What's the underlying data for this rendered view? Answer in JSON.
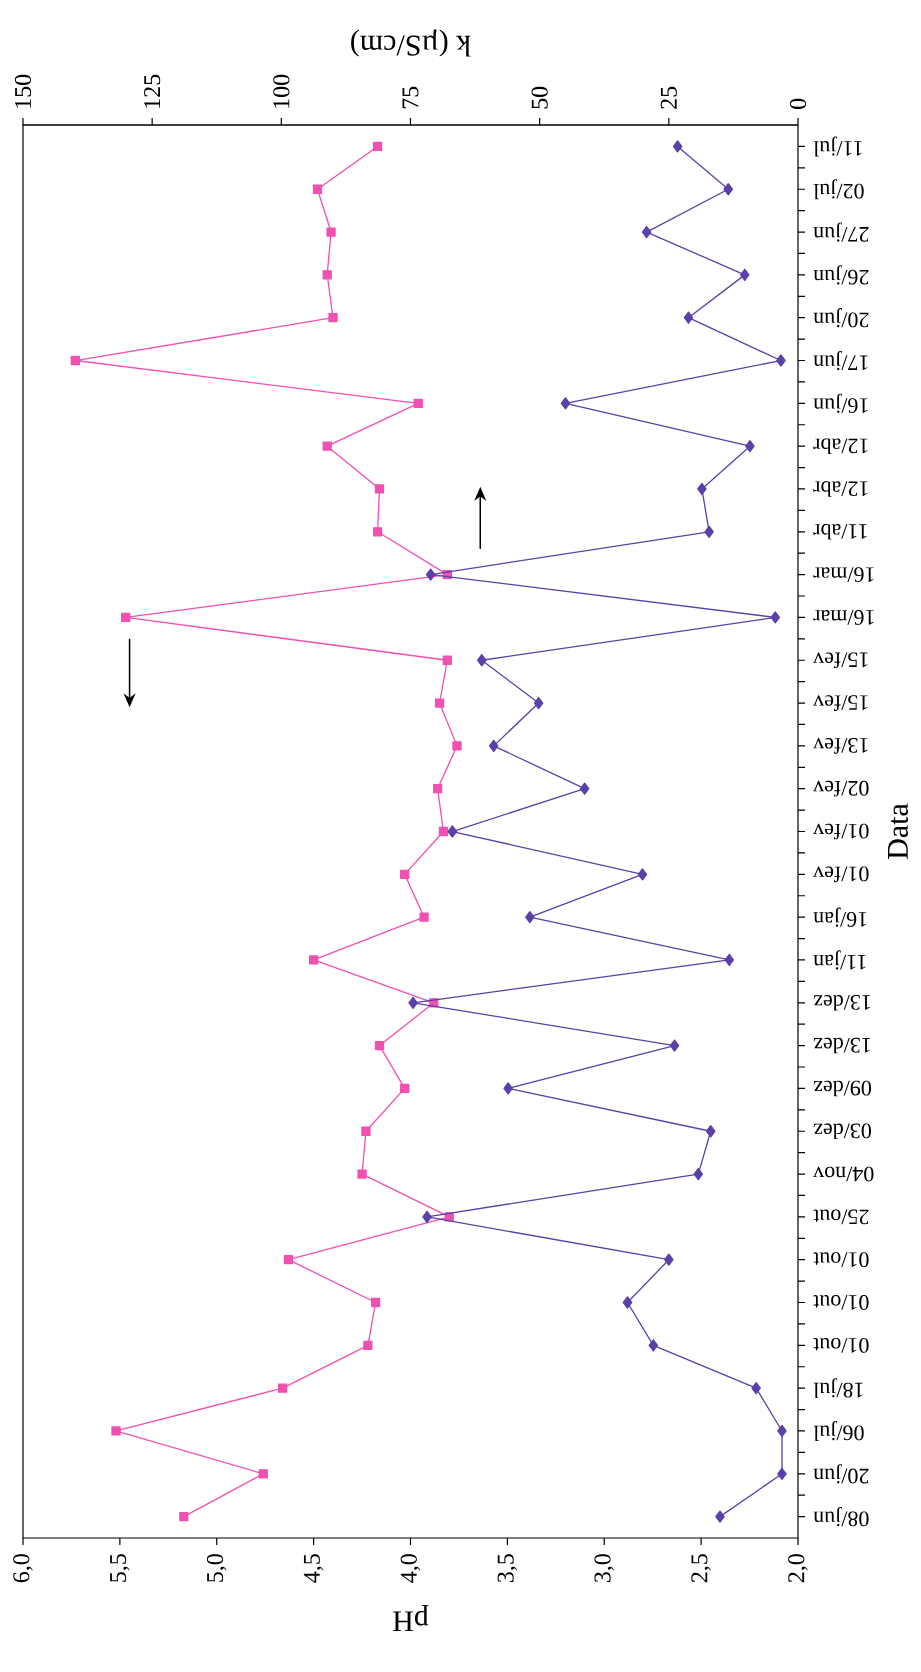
{
  "chart_data": {
    "type": "line",
    "orientation": "horizontal",
    "xlabel": "pH",
    "x2label": "k (µS/cm)",
    "ylabel": "Data",
    "categories": [
      "11/jul",
      "02/jul",
      "27/jun",
      "26/jun",
      "20/jun",
      "17/jun",
      "16/jun",
      "12/abr",
      "12/abr",
      "11/abr",
      "16/mar",
      "16/mar",
      "15/fev",
      "15/fev",
      "13/fev",
      "02/fev",
      "01/fev",
      "01/fev",
      "16/jan",
      "11/jan",
      "13/dez",
      "13/dez",
      "09/dez",
      "03/dez",
      "04/nov",
      "25/out",
      "01/out",
      "01/out",
      "01/out",
      "18/jul",
      "06/jul",
      "20/jun",
      "08/jun"
    ],
    "series": [
      {
        "color": "#f050b0",
        "marker": "square",
        "values": [
          4.17,
          4.48,
          4.41,
          4.43,
          4.4,
          5.73,
          3.96,
          4.43,
          4.16,
          4.17,
          3.81,
          5.47,
          3.81,
          3.85,
          3.76,
          3.86,
          3.83,
          4.03,
          3.93,
          4.5,
          3.88,
          4.16,
          4.03,
          4.23,
          4.25,
          3.8,
          4.63,
          4.18,
          4.22,
          4.66,
          5.52,
          4.76,
          5.17
        ]
      },
      {
        "color": "#5a40a8",
        "marker": "diamond",
        "axis": "x2",
        "values": [
          23.3,
          13.5,
          29.3,
          10.3,
          21.2,
          3.3,
          45.0,
          9.3,
          18.6,
          17.2,
          71.1,
          4.4,
          61.2,
          50.2,
          58.9,
          41.3,
          66.9,
          30.1,
          51.9,
          13.3,
          74.5,
          23.9,
          56.1,
          16.9,
          19.3,
          71.8,
          25.0,
          33.0,
          28.0,
          8.1,
          3.1,
          3.1,
          15.1
        ]
      }
    ],
    "xlim": [
      6,
      2
    ],
    "xticks": [
      {
        "value": 2,
        "label": "2,0"
      },
      {
        "value": 2.5,
        "label": "2,5"
      },
      {
        "value": 3,
        "label": "3,0"
      },
      {
        "value": 3.5,
        "label": "3,5"
      },
      {
        "value": 4,
        "label": "4,0"
      },
      {
        "value": 4.5,
        "label": "4,5"
      },
      {
        "value": 5,
        "label": "5,0"
      },
      {
        "value": 5.5,
        "label": "5,5"
      },
      {
        "value": 6,
        "label": "6,0"
      }
    ],
    "x2lim": [
      150,
      0
    ],
    "x2ticks": [
      0,
      25,
      50,
      75,
      100,
      125,
      150
    ]
  }
}
